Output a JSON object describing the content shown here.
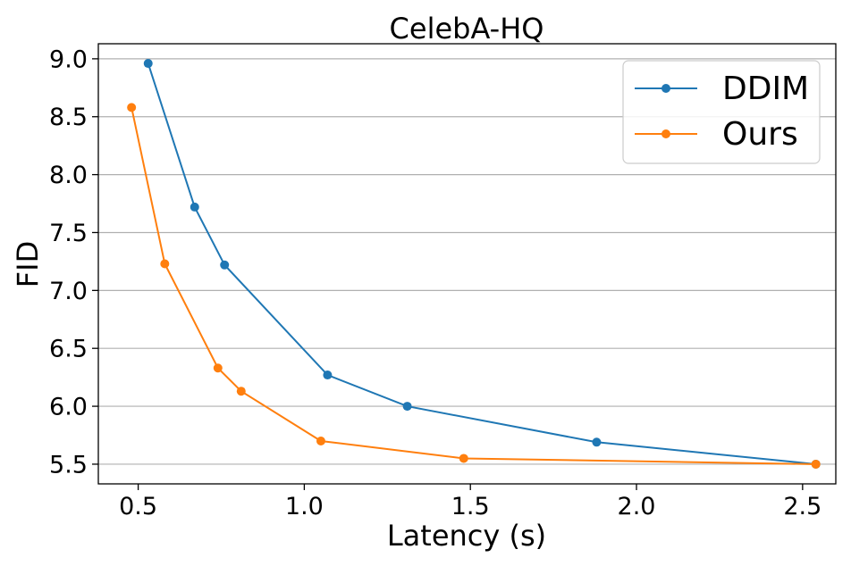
{
  "chart_data": {
    "type": "line",
    "title": "CelebA-HQ",
    "xlabel": "Latency (s)",
    "ylabel": "FID",
    "xlim": [
      0.38,
      2.6
    ],
    "ylim": [
      5.33,
      9.13
    ],
    "xticks": [
      0.5,
      1.0,
      1.5,
      2.0,
      2.5
    ],
    "xtick_labels": [
      "0.5",
      "1.0",
      "1.5",
      "2.0",
      "2.5"
    ],
    "yticks": [
      5.5,
      6.0,
      6.5,
      7.0,
      7.5,
      8.0,
      8.5,
      9.0
    ],
    "ytick_labels": [
      "5.5",
      "6.0",
      "6.5",
      "7.0",
      "7.5",
      "8.0",
      "8.5",
      "9.0"
    ],
    "grid": "horizontal",
    "legend_position": "top-right",
    "series": [
      {
        "name": "DDIM",
        "color": "#1f77b4",
        "x": [
          0.53,
          0.67,
          0.76,
          1.07,
          1.31,
          1.88,
          2.54
        ],
        "y": [
          8.96,
          7.72,
          7.22,
          6.27,
          6.0,
          5.69,
          5.5
        ]
      },
      {
        "name": "Ours",
        "color": "#ff7f0e",
        "x": [
          0.48,
          0.58,
          0.74,
          0.81,
          1.05,
          1.48,
          2.54
        ],
        "y": [
          8.58,
          7.23,
          6.33,
          6.13,
          5.7,
          5.55,
          5.5
        ]
      }
    ]
  }
}
